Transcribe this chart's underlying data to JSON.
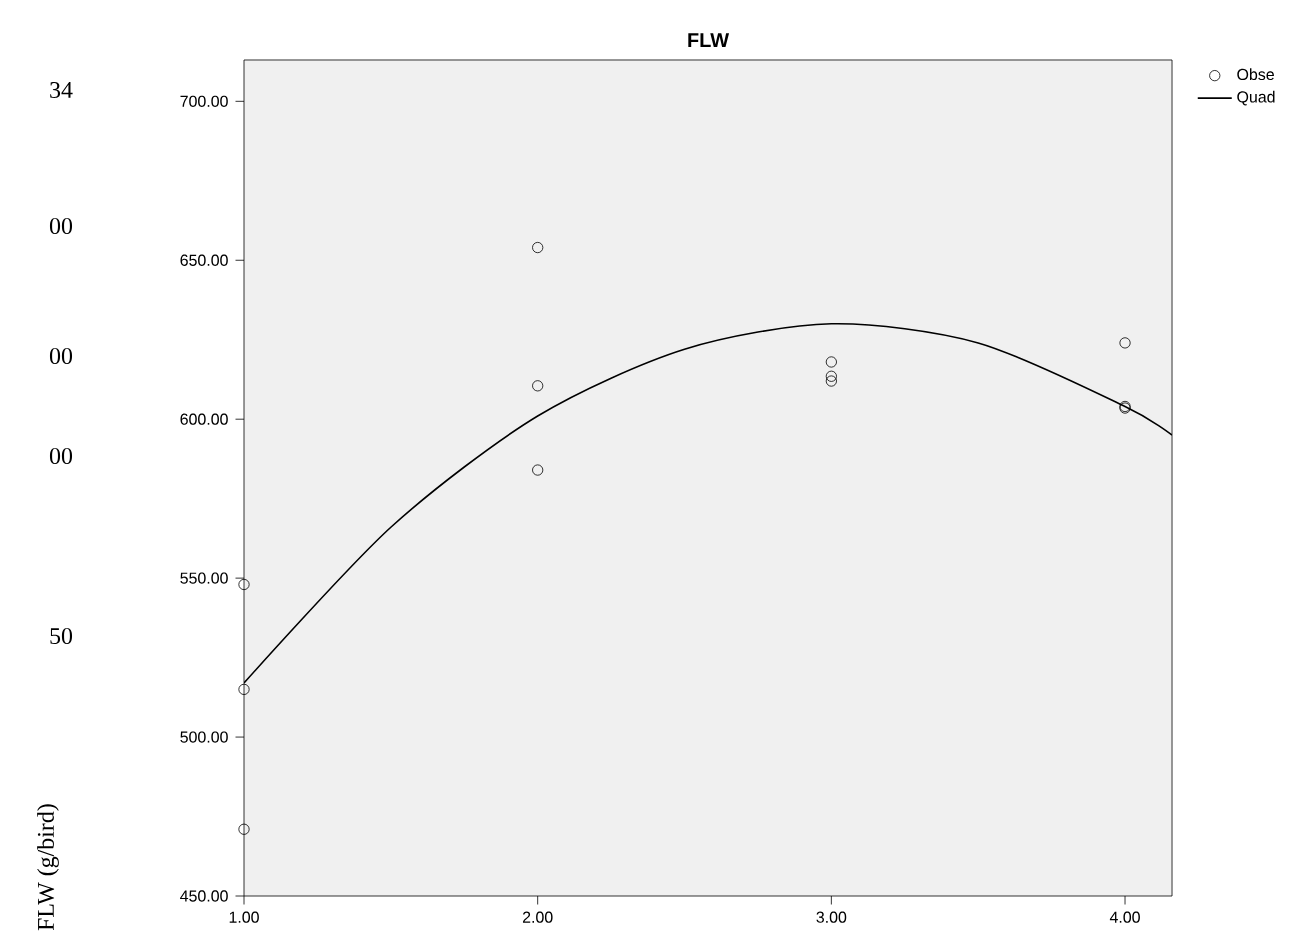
{
  "chart_data": {
    "type": "scatter",
    "title": "FLW",
    "annotations": [
      "34",
      "00",
      "00",
      "00",
      "50",
      "FLW (g/bird)"
    ],
    "xlim": [
      1,
      4.16
    ],
    "ylim": [
      450,
      713
    ],
    "xticks": [
      {
        "value": 1,
        "label": "1.00"
      },
      {
        "value": 2,
        "label": "2.00"
      },
      {
        "value": 3,
        "label": "3.00"
      },
      {
        "value": 4,
        "label": "4.00"
      }
    ],
    "yticks": [
      {
        "value": 450,
        "label": "450.00"
      },
      {
        "value": 500,
        "label": "500.00"
      },
      {
        "value": 550,
        "label": "550.00"
      },
      {
        "value": 600,
        "label": "600.00"
      },
      {
        "value": 650,
        "label": "650.00"
      },
      {
        "value": 700,
        "label": "700.00"
      }
    ],
    "legend": "top right",
    "grid": false,
    "series": [
      {
        "name": "Obse",
        "marker": "circle",
        "color": "#000000",
        "x": [
          1,
          1,
          1,
          2,
          2,
          2,
          3,
          3,
          3,
          4,
          4,
          4
        ],
        "values": [
          548,
          515,
          471,
          654,
          610.5,
          584,
          618,
          613.5,
          612,
          624,
          604,
          603.5
        ]
      },
      {
        "name": "Quad",
        "type": "line",
        "marker": "none",
        "color": "#000000",
        "x": [
          1,
          1.5,
          2,
          2.5,
          3,
          3.5,
          4,
          4.16
        ],
        "values": [
          517,
          566,
          601,
          622,
          630,
          624,
          604,
          595
        ]
      }
    ]
  }
}
